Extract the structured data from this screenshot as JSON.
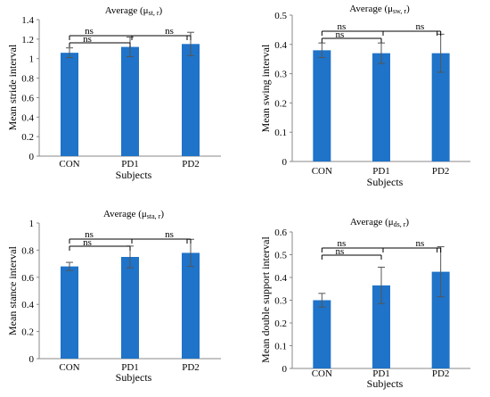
{
  "chart_data": [
    {
      "type": "bar",
      "title_main": "Average (μ",
      "title_sub": "st, r",
      "title_end": ")",
      "categories": [
        "CON",
        "PD1",
        "PD2"
      ],
      "values": [
        1.06,
        1.12,
        1.15
      ],
      "errors": [
        0.05,
        0.1,
        0.12
      ],
      "xlabel": "Subjects",
      "ylabel": "Mean stride interval",
      "ylim": [
        0,
        1.4
      ],
      "yticks": [
        "0",
        "0.2",
        "0.4",
        "0.6",
        "0.8",
        "1",
        "1.2",
        "1.4"
      ],
      "significance": [
        {
          "pair": [
            "CON",
            "PD1"
          ],
          "label": "ns"
        },
        {
          "pair": [
            "CON",
            "PD2"
          ],
          "label": "ns"
        },
        {
          "pair": [
            "PD1",
            "PD2"
          ],
          "label": "ns"
        }
      ],
      "color": "#1f73c8"
    },
    {
      "type": "bar",
      "title_main": "Average (μ",
      "title_sub": "sw, r",
      "title_end": ")",
      "categories": [
        "CON",
        "PD1",
        "PD2"
      ],
      "values": [
        0.38,
        0.37,
        0.37
      ],
      "errors": [
        0.025,
        0.035,
        0.065
      ],
      "xlabel": "Subjects",
      "ylabel": "Mean swing interval",
      "ylim": [
        0,
        0.5
      ],
      "yticks": [
        "0",
        "0.1",
        "0.2",
        "0.3",
        "0.4",
        "0.5"
      ],
      "significance": [
        {
          "pair": [
            "CON",
            "PD1"
          ],
          "label": "ns"
        },
        {
          "pair": [
            "CON",
            "PD2"
          ],
          "label": "ns"
        },
        {
          "pair": [
            "PD1",
            "PD2"
          ],
          "label": "ns"
        }
      ],
      "color": "#1f73c8"
    },
    {
      "type": "bar",
      "title_main": "Average (μ",
      "title_sub": "sta, r",
      "title_end": ")",
      "categories": [
        "CON",
        "PD1",
        "PD2"
      ],
      "values": [
        0.68,
        0.75,
        0.78
      ],
      "errors": [
        0.03,
        0.08,
        0.1
      ],
      "xlabel": "Subjects",
      "ylabel": "Mean stance interval",
      "ylim": [
        0,
        1
      ],
      "yticks": [
        "0",
        "0.2",
        "0.4",
        "0.6",
        "0.8",
        "1"
      ],
      "significance": [
        {
          "pair": [
            "CON",
            "PD1"
          ],
          "label": "ns"
        },
        {
          "pair": [
            "CON",
            "PD2"
          ],
          "label": "ns"
        },
        {
          "pair": [
            "PD1",
            "PD2"
          ],
          "label": "ns"
        }
      ],
      "color": "#1f73c8"
    },
    {
      "type": "bar",
      "title_main": "Average (μ",
      "title_sub": "ds, r",
      "title_end": ")",
      "categories": [
        "CON",
        "PD1",
        "PD2"
      ],
      "values": [
        0.3,
        0.365,
        0.425
      ],
      "errors": [
        0.03,
        0.08,
        0.11
      ],
      "xlabel": "Subjects",
      "ylabel": "Mean double support interval",
      "ylim": [
        0,
        0.6
      ],
      "yticks": [
        "0",
        "0.1",
        "0.2",
        "0.3",
        "0.4",
        "0.5",
        "0.6"
      ],
      "significance": [
        {
          "pair": [
            "CON",
            "PD1"
          ],
          "label": "ns"
        },
        {
          "pair": [
            "CON",
            "PD2"
          ],
          "label": "ns"
        },
        {
          "pair": [
            "PD1",
            "PD2"
          ],
          "label": "ns"
        }
      ],
      "color": "#1f73c8"
    }
  ]
}
